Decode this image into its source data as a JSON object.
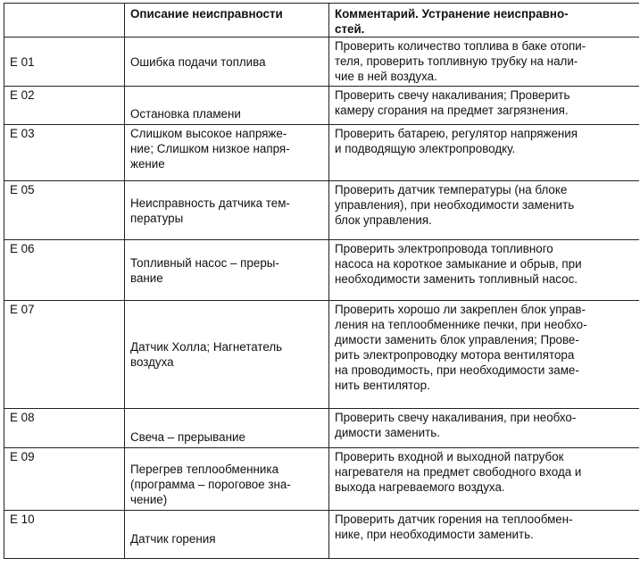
{
  "headers": [
    "",
    "Описание неисправности",
    "Комментарий. Устранение неисправно-\nстей."
  ],
  "rows": [
    {
      "code": "E 01",
      "description": "Ошибка подачи топлива",
      "remedy": "Проверить количество топлива в баке отопи-\nтеля, проверить топливную трубку на нали-\nчие в ней воздуха."
    },
    {
      "code": "E 02",
      "description": "Остановка пламени",
      "remedy": "Проверить свечу накаливания; Проверить\nкамеру сгорания на предмет загрязнения."
    },
    {
      "code": "E 03",
      "description": "Слишком высокое напряже-\nние; Слишком низкое напря-\nжение",
      "remedy": "Проверить батарею, регулятор напряжения\nи подводящую электропроводку."
    },
    {
      "code": "E 05",
      "description": "Неисправность датчика тем-\nпературы",
      "remedy": "Проверить датчик температуры (на блоке\nуправления), при необходимости заменить\nблок управления."
    },
    {
      "code": "E 06",
      "description": "Топливный насос – преры-\nвание",
      "remedy": "Проверить электропровода топливного\nнасоса на короткое замыкание и обрыв, при\nнеобходимости заменить топливный насос."
    },
    {
      "code": "E 07",
      "description": "Датчик Холла; Нагнетатель\nвоздуха",
      "remedy": "Проверить хорошо ли закреплен блок управ-\nления на теплообменнике печки, при необхо-\nдимости заменить блок управления; Прове-\nрить электропроводку мотора вентилятора\nна проводимость, при необходимости заме-\nнить вентилятор."
    },
    {
      "code": "E 08",
      "description": "Свеча – прерывание",
      "remedy": "Проверить свечу накаливания, при необхо-\nдимости заменить."
    },
    {
      "code": "E 09",
      "description": "Перегрев теплообменника\n(программа – пороговое зна-\nчение)",
      "remedy": "Проверить входной и выходной патрубок\nнагревателя на предмет свободного входа и\nвыхода нагреваемого воздуха."
    },
    {
      "code": "E 10",
      "description": "Датчик горения",
      "remedy": "Проверить датчик горения на теплообмен-\nнике, при необходимости заменить."
    }
  ]
}
